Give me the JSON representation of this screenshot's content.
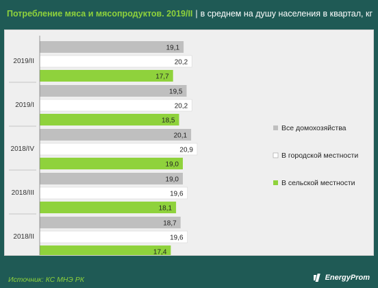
{
  "header": {
    "title": "Потребление мяса и мясопродуктов. 2019/II",
    "separator": "|",
    "subtitle": "в среднем на душу населения в квартал, кг"
  },
  "footer": {
    "source": "Источник: КС МНЭ РК",
    "brand": "EnergyProm"
  },
  "colors": {
    "frame": "#1f5a55",
    "title_accent": "#8fd23c",
    "plot_bg": "#efefef",
    "series_all": "#bfbfbf",
    "series_urban": "#ffffff",
    "series_rural": "#8fd23c"
  },
  "chart_data": {
    "type": "bar",
    "orientation": "horizontal",
    "title": "Потребление мяса и мясопродуктов. 2019/II",
    "subtitle": "в среднем на душу населения в квартал, кг",
    "categories": [
      "2019/II",
      "2019/I",
      "2018/IV",
      "2018/III",
      "2018/II"
    ],
    "series": [
      {
        "name": "Все домохозяйства",
        "color": "#bfbfbf",
        "values": [
          19.1,
          19.5,
          20.1,
          19.0,
          18.7
        ],
        "labels": [
          "19,1",
          "19,5",
          "20,1",
          "19,0",
          "18,7"
        ]
      },
      {
        "name": "В городской местности",
        "color": "#ffffff",
        "values": [
          20.2,
          20.2,
          20.9,
          19.6,
          19.6
        ],
        "labels": [
          "20,2",
          "20,2",
          "20,9",
          "19,6",
          "19,6"
        ]
      },
      {
        "name": "В сельской местности",
        "color": "#8fd23c",
        "values": [
          17.7,
          18.5,
          19.0,
          18.1,
          17.4
        ],
        "labels": [
          "17,7",
          "18,5",
          "19,0",
          "18,1",
          "17,4"
        ]
      }
    ],
    "xlim": [
      0,
      28
    ],
    "grid": false,
    "legend": "right"
  }
}
